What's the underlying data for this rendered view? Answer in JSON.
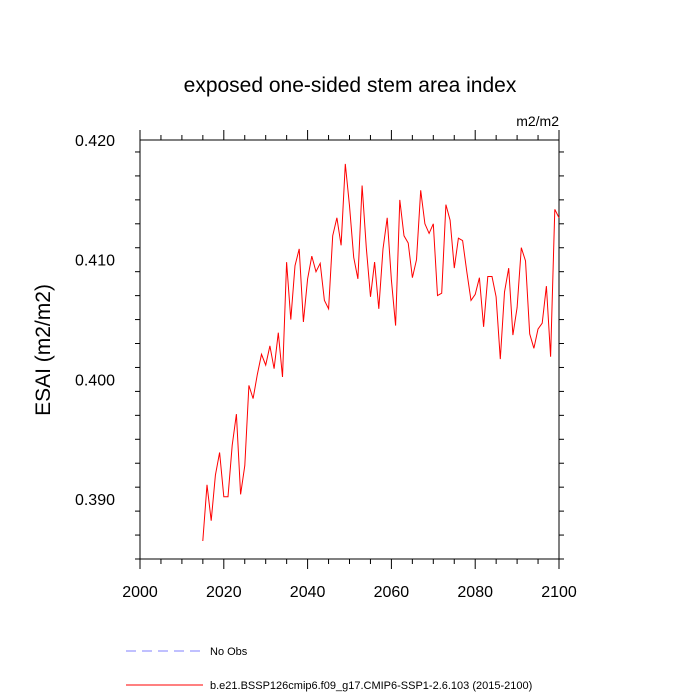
{
  "chart_data": {
    "type": "line",
    "title": "exposed one-sided stem area index",
    "units": "m2/m2",
    "ylabel": "ESAI  (m2/m2)",
    "xlabel": "",
    "xlim": [
      2000,
      2100
    ],
    "ylim": [
      0.385,
      0.42
    ],
    "x_ticks": [
      2000,
      2020,
      2040,
      2060,
      2080,
      2100
    ],
    "x_tick_labels": [
      "2000",
      "2020",
      "2040",
      "2060",
      "2080",
      "2100"
    ],
    "y_ticks": [
      0.39,
      0.4,
      0.41,
      0.42
    ],
    "y_tick_labels": [
      "0.390",
      "0.400",
      "0.410",
      "0.420"
    ],
    "grid": false,
    "legend_position": "bottom-left",
    "series": [
      {
        "name": "No Obs",
        "color": "#8080ff",
        "dash": true,
        "x": [],
        "values": []
      },
      {
        "name": "b.e21.BSSP126cmip6.f09_g17.CMIP6-SSP1-2.6.103 (2015-2100)",
        "color": "#ff0000",
        "dash": false,
        "x": [
          2015,
          2016,
          2017,
          2018,
          2019,
          2020,
          2021,
          2022,
          2023,
          2024,
          2025,
          2026,
          2027,
          2028,
          2029,
          2030,
          2031,
          2032,
          2033,
          2034,
          2035,
          2036,
          2037,
          2038,
          2039,
          2040,
          2041,
          2042,
          2043,
          2044,
          2045,
          2046,
          2047,
          2048,
          2049,
          2050,
          2051,
          2052,
          2053,
          2054,
          2055,
          2056,
          2057,
          2058,
          2059,
          2060,
          2061,
          2062,
          2063,
          2064,
          2065,
          2066,
          2067,
          2068,
          2069,
          2070,
          2071,
          2072,
          2073,
          2074,
          2075,
          2076,
          2077,
          2078,
          2079,
          2080,
          2081,
          2082,
          2083,
          2084,
          2085,
          2086,
          2087,
          2088,
          2089,
          2090,
          2091,
          2092,
          2093,
          2094,
          2095,
          2096,
          2097,
          2098,
          2099,
          2100
        ],
        "values": [
          0.3865,
          0.3912,
          0.3882,
          0.392,
          0.3939,
          0.3902,
          0.3902,
          0.3945,
          0.3971,
          0.3904,
          0.3928,
          0.3995,
          0.3984,
          0.4004,
          0.4021,
          0.4012,
          0.4028,
          0.4009,
          0.4039,
          0.4002,
          0.4098,
          0.405,
          0.4095,
          0.4109,
          0.4048,
          0.4084,
          0.4103,
          0.409,
          0.4097,
          0.4066,
          0.4059,
          0.412,
          0.4135,
          0.4112,
          0.418,
          0.4145,
          0.4102,
          0.4084,
          0.4162,
          0.411,
          0.4069,
          0.4098,
          0.4059,
          0.4109,
          0.4135,
          0.4083,
          0.4045,
          0.415,
          0.412,
          0.4114,
          0.4085,
          0.41,
          0.4158,
          0.413,
          0.4122,
          0.413,
          0.407,
          0.4072,
          0.4146,
          0.4133,
          0.4093,
          0.4118,
          0.4116,
          0.409,
          0.4066,
          0.4071,
          0.4085,
          0.4044,
          0.4086,
          0.4086,
          0.4069,
          0.4017,
          0.4073,
          0.4093,
          0.4037,
          0.406,
          0.411,
          0.4099,
          0.4038,
          0.4026,
          0.4042,
          0.4047,
          0.4078,
          0.4019,
          0.4142,
          0.4135
        ]
      }
    ]
  }
}
